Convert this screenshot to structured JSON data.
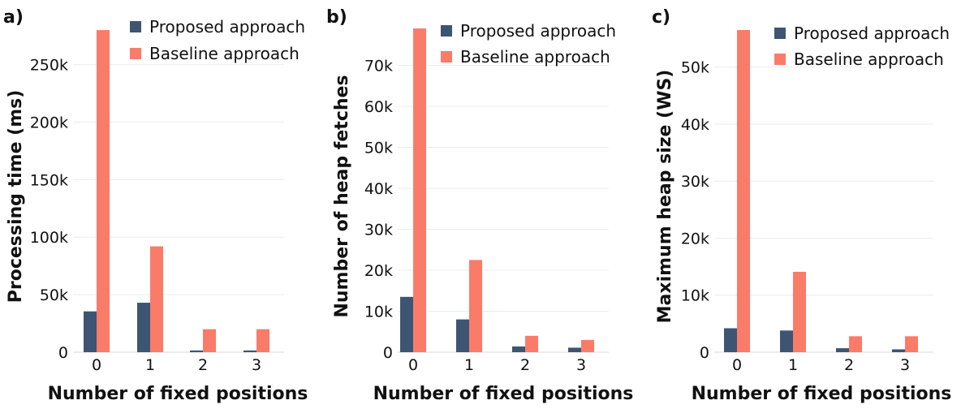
{
  "chart_data": [
    {
      "type": "bar",
      "panel_label": "a)",
      "categories": [
        "0",
        "1",
        "2",
        "3"
      ],
      "series": [
        {
          "name": "Proposed approach",
          "values": [
            35500,
            43000,
            1500,
            1500
          ]
        },
        {
          "name": "Baseline approach",
          "values": [
            280000,
            92000,
            20000,
            20000
          ]
        }
      ],
      "xlabel": "Number of fixed positions",
      "ylabel": "Processing time (ms)",
      "ylim": [
        0,
        285000
      ],
      "yticks": [
        0,
        50000,
        100000,
        150000,
        200000,
        250000
      ],
      "ytick_labels": [
        "0",
        "50k",
        "100k",
        "150k",
        "200k",
        "250k"
      ],
      "grid": true,
      "legend_position": "top-right"
    },
    {
      "type": "bar",
      "panel_label": "b)",
      "categories": [
        "0",
        "1",
        "2",
        "3"
      ],
      "series": [
        {
          "name": "Proposed approach",
          "values": [
            13500,
            8000,
            1400,
            1100
          ]
        },
        {
          "name": "Baseline approach",
          "values": [
            79000,
            22500,
            4000,
            3000
          ]
        }
      ],
      "xlabel": "Number of fixed positions",
      "ylabel": "Number of heap fetches",
      "ylim": [
        0,
        80000
      ],
      "yticks": [
        0,
        10000,
        20000,
        30000,
        40000,
        50000,
        60000,
        70000
      ],
      "ytick_labels": [
        "0",
        "10k",
        "20k",
        "30k",
        "40k",
        "50k",
        "60k",
        "70k"
      ],
      "grid": true,
      "legend_position": "top-right"
    },
    {
      "type": "bar",
      "panel_label": "c)",
      "categories": [
        "0",
        "1",
        "2",
        "3"
      ],
      "series": [
        {
          "name": "Proposed approach",
          "values": [
            4200,
            3800,
            700,
            500
          ]
        },
        {
          "name": "Baseline approach",
          "values": [
            56500,
            14100,
            2800,
            2800
          ]
        }
      ],
      "xlabel": "Number of fixed positions",
      "ylabel": "Maximum heap size (WS)",
      "ylim": [
        0,
        57500
      ],
      "yticks": [
        0,
        10000,
        20000,
        30000,
        40000,
        50000
      ],
      "ytick_labels": [
        "0",
        "10k",
        "20k",
        "30k",
        "40k",
        "50k"
      ],
      "grid": true,
      "legend_position": "top-right"
    }
  ],
  "colors": {
    "proposed": "#3d5573",
    "baseline": "#fb7b69"
  }
}
